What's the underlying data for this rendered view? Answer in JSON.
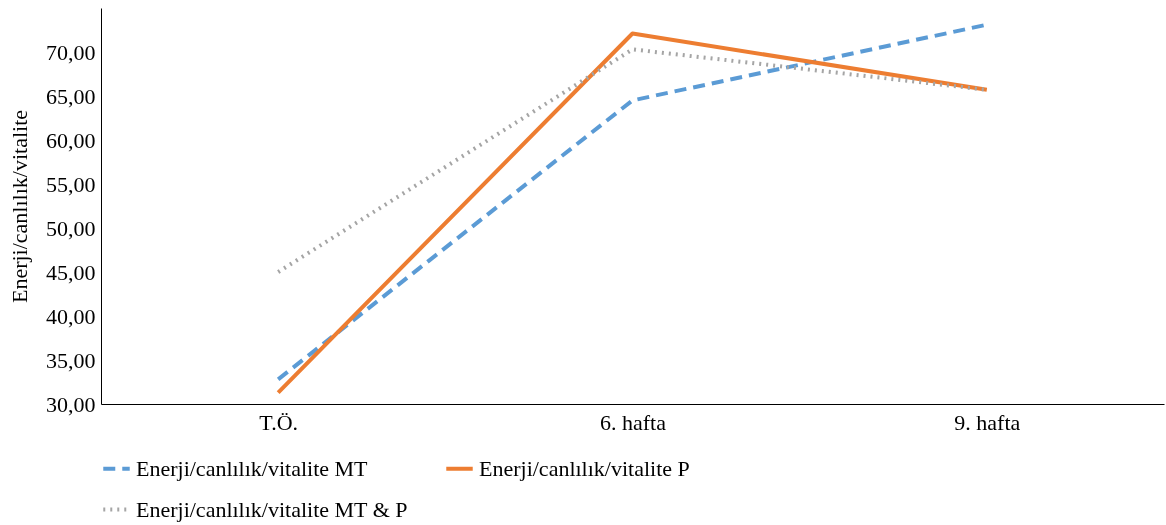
{
  "chart_data": {
    "type": "line",
    "ylabel": "Enerji/canlılık/vitalite",
    "categories": [
      "T.Ö.",
      "6. hafta",
      "9. hafta"
    ],
    "ylim": [
      30,
      75
    ],
    "yticks": [
      {
        "value": 30,
        "label": "30,00"
      },
      {
        "value": 35,
        "label": "35,00"
      },
      {
        "value": 40,
        "label": "40,00"
      },
      {
        "value": 45,
        "label": "45,00"
      },
      {
        "value": 50,
        "label": "50,00"
      },
      {
        "value": 55,
        "label": "55,00"
      },
      {
        "value": 60,
        "label": "60,00"
      },
      {
        "value": 65,
        "label": "65,00"
      },
      {
        "value": 70,
        "label": "70,00"
      }
    ],
    "grid": false,
    "legend": "bottom",
    "marker": "none",
    "series": [
      {
        "name": "Enerji/canlılık/vitalite MT",
        "color": "#5b9bd5",
        "line_style": "dashed",
        "values": [
          32.8,
          64.5,
          73.1
        ]
      },
      {
        "name": "Enerji/canlılık/vitalite P",
        "color": "#ed7d31",
        "line_style": "solid",
        "values": [
          31.3,
          72.1,
          65.7
        ]
      },
      {
        "name": "Enerji/canlılık/vitalite MT & P",
        "color": "#a5a5a5",
        "line_style": "dotted",
        "values": [
          45.0,
          70.3,
          65.7
        ]
      }
    ]
  }
}
